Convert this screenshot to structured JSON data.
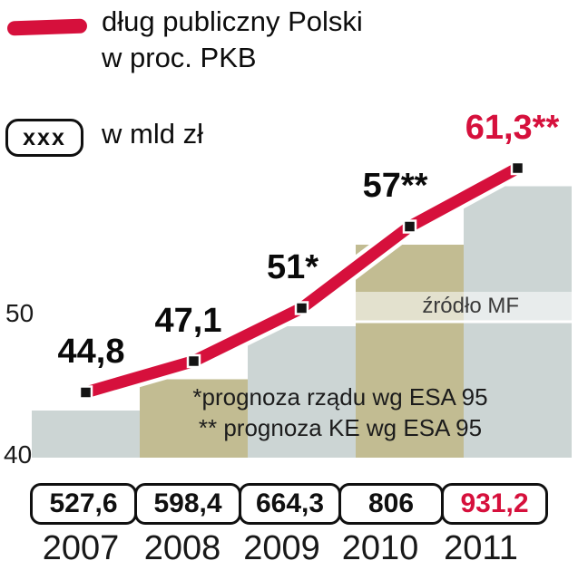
{
  "legend": {
    "line_label": "dług publiczny Polski\nw proc. PKB",
    "box_symbol": "xxx",
    "box_label": "w mld zł"
  },
  "colors": {
    "accent_red": "#d6103c",
    "band_gray": "#ccd5d4",
    "band_olive": "#c2bc92",
    "marker_black": "#141414",
    "band_colors": [
      "#ccd5d4",
      "#c2bc92",
      "#ccd5d4",
      "#c2bc92",
      "#ccd5d4"
    ]
  },
  "chart_data": {
    "type": "line",
    "title": "dług publiczny Polski w proc. PKB",
    "categories": [
      "2007",
      "2008",
      "2009",
      "2010",
      "2011"
    ],
    "values": [
      44.8,
      47.1,
      51,
      57,
      61.3
    ],
    "point_labels": [
      "44,8",
      "47,1",
      "51*",
      "57**",
      "61,3**"
    ],
    "highlight_last": true,
    "secondary_series": {
      "name": "dług publiczny w mld zł",
      "values": [
        527.6,
        598.4,
        664.3,
        806,
        931.2
      ],
      "labels": [
        "527,6",
        "598,4",
        "664,3",
        "806",
        "931,2"
      ],
      "highlight_last": true
    },
    "xlabel": "",
    "ylabel": "proc. PKB",
    "ylim": [
      40,
      63
    ],
    "y_ticks": [
      "50",
      "40"
    ],
    "grid": "horizontal",
    "legend_position": "top-left",
    "source": "źródło MF",
    "notes": [
      "*prognoza rządu wg ESA 95",
      "** prognoza KE wg ESA 95"
    ]
  }
}
